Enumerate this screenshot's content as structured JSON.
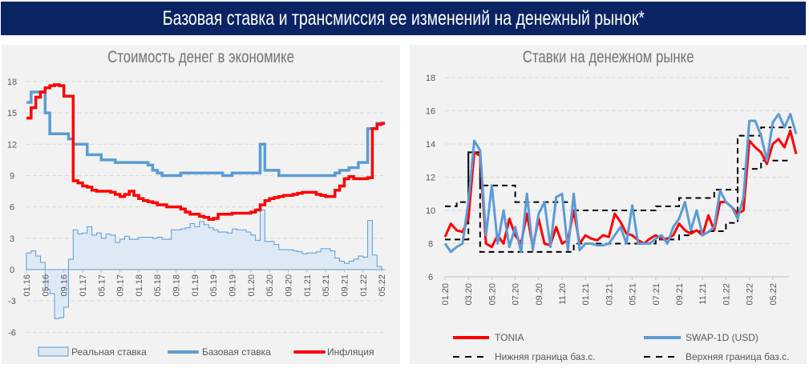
{
  "header": {
    "title": "Базовая ставка и трансмиссия ее изменений на денежный рынок*"
  },
  "chart_data": [
    {
      "type": "line",
      "title": "Стоимость денег в экономике",
      "x_start": "01.16",
      "x_step": "month",
      "x_tick_labels": [
        "01.16",
        "05.16",
        "09.16",
        "01.17",
        "05.17",
        "09.17",
        "01.18",
        "05.18",
        "09.18",
        "01.19",
        "05.19",
        "09.19",
        "01.20",
        "05.20",
        "09.20",
        "01.21",
        "05.21",
        "09.21",
        "01.22",
        "05.22"
      ],
      "y_ticks": [
        18,
        15,
        12,
        9,
        6,
        3,
        0,
        -3,
        -6
      ],
      "ylim": [
        -6,
        18
      ],
      "grid": "horizontal dashed",
      "legend_position": "bottom",
      "series": [
        {
          "name": "Реальная ставка",
          "kind": "area",
          "color": "#5b9bd5",
          "fill": "#dde9f5",
          "values": [
            1.6,
            1.8,
            1.3,
            0.7,
            -1.9,
            -2.3,
            -4.7,
            -4.6,
            -3.6,
            1.0,
            3.8,
            3.4,
            3.5,
            4.1,
            3.3,
            3.5,
            3.0,
            3.4,
            3.3,
            2.6,
            2.9,
            3.2,
            2.9,
            2.9,
            3.1,
            3.1,
            3.1,
            3.0,
            3.1,
            2.9,
            2.9,
            3.8,
            3.8,
            3.9,
            4.0,
            4.4,
            4.1,
            4.6,
            4.3,
            4.0,
            3.8,
            3.6,
            3.6,
            3.5,
            3.9,
            3.8,
            3.8,
            3.6,
            3.3,
            2.8,
            5.7,
            2.7,
            2.7,
            2.4,
            1.9,
            1.9,
            1.9,
            1.8,
            1.7,
            1.5,
            1.6,
            1.6,
            1.7,
            2.0,
            2.0,
            1.8,
            1.1,
            0.8,
            0.6,
            0.8,
            1.0,
            1.3,
            1.2,
            4.7,
            1.4,
            0.3,
            0.0
          ]
        },
        {
          "name": "Базовая ставка",
          "kind": "line",
          "color": "#5b9bd5",
          "values": [
            16,
            17,
            17,
            17,
            15,
            13,
            13,
            13,
            13,
            12.5,
            12,
            12,
            12,
            11,
            11,
            11,
            10.5,
            10.5,
            10.5,
            10.25,
            10.25,
            10.25,
            10.25,
            10.25,
            10.25,
            10.25,
            10,
            9.5,
            9.25,
            9,
            9,
            9,
            9,
            9.25,
            9.25,
            9.25,
            9.25,
            9.25,
            9.25,
            9.25,
            9.25,
            9.25,
            9,
            9,
            9.25,
            9.25,
            9.25,
            9.25,
            9.25,
            9.25,
            12,
            9.5,
            9.5,
            9.5,
            9,
            9,
            9,
            9,
            9,
            9,
            9,
            9,
            9,
            9,
            9,
            9,
            9.25,
            9.5,
            9.5,
            9.75,
            9.75,
            10.25,
            10.25,
            13.5,
            13.5,
            14,
            14
          ]
        },
        {
          "name": "Инфляция",
          "kind": "line",
          "color": "#ff0000",
          "values": [
            14.5,
            15.5,
            16.5,
            17.0,
            17.4,
            17.6,
            17.7,
            17.6,
            16.6,
            16.6,
            8.5,
            8.3,
            8.0,
            7.9,
            7.6,
            7.5,
            7.5,
            7.5,
            7.4,
            7.2,
            7.0,
            7.2,
            7.5,
            7.1,
            6.8,
            6.6,
            6.5,
            6.4,
            6.2,
            6.2,
            6.0,
            6.0,
            6.0,
            5.8,
            5.5,
            5.3,
            5.3,
            5.1,
            5.0,
            4.8,
            4.9,
            5.3,
            5.3,
            5.3,
            5.4,
            5.4,
            5.4,
            5.4,
            5.5,
            5.7,
            6.2,
            6.6,
            6.8,
            6.9,
            7.0,
            7.1,
            7.1,
            7.2,
            7.3,
            7.4,
            7.4,
            7.4,
            7.2,
            7.1,
            7.0,
            7.0,
            7.6,
            8.0,
            8.7,
            8.9,
            8.7,
            8.7,
            8.7,
            8.8,
            13.5,
            13.9,
            14.0
          ]
        }
      ]
    },
    {
      "type": "line",
      "title": "Ставки на денежном рынке",
      "x_start": "01.20",
      "x_step": "half-month",
      "x_tick_labels": [
        "01.20",
        "03.20",
        "05.20",
        "07.20",
        "09.20",
        "11.20",
        "01.21",
        "03.21",
        "05.21",
        "07.21",
        "09.21",
        "11.21",
        "01.22",
        "03.22",
        "05.22"
      ],
      "y_ticks": [
        18,
        16,
        14,
        12,
        10,
        8,
        6
      ],
      "ylim": [
        6,
        18
      ],
      "grid": "horizontal dashed",
      "legend_position": "bottom",
      "series": [
        {
          "name": "TONIA",
          "color": "#ff0000",
          "values": [
            8.4,
            9.2,
            8.8,
            8.7,
            9.5,
            13.5,
            13.3,
            8.0,
            7.8,
            8.5,
            8.0,
            9.5,
            8.5,
            8.0,
            9.8,
            7.8,
            9.5,
            8.0,
            7.9,
            9.0,
            8.0,
            8.2,
            10.0,
            8.0,
            8.5,
            8.3,
            8.2,
            8.5,
            8.4,
            9.8,
            9.3,
            8.6,
            8.5,
            8.2,
            8.0,
            8.3,
            8.5,
            8.3,
            8.3,
            8.5,
            9.2,
            8.8,
            8.6,
            8.8,
            8.5,
            9.7,
            8.8,
            10.5,
            10.5,
            10.2,
            9.8,
            10.0,
            14.2,
            13.8,
            13.5,
            12.8,
            14.0,
            14.3,
            13.8,
            14.8,
            13.4
          ]
        },
        {
          "name": "SWAP-1D (USD)",
          "color": "#5b9bd5",
          "values": [
            8.0,
            7.5,
            7.8,
            8.0,
            10.5,
            14.2,
            13.6,
            8.5,
            11.5,
            8.0,
            10.0,
            7.8,
            9.0,
            7.5,
            11.0,
            7.6,
            9.8,
            10.5,
            7.8,
            10.8,
            11.0,
            7.6,
            11.0,
            7.6,
            8.0,
            8.0,
            7.9,
            7.9,
            8.0,
            8.5,
            9.0,
            8.0,
            10.3,
            8.0,
            8.0,
            8.0,
            8.3,
            8.5,
            8.0,
            9.0,
            9.5,
            10.5,
            8.8,
            10.0,
            8.5,
            8.7,
            9.0,
            11.2,
            10.5,
            10.2,
            9.5,
            10.8,
            15.4,
            15.4,
            14.5,
            13.0,
            15.3,
            15.8,
            15.0,
            15.8,
            14.6
          ]
        },
        {
          "name": "Нижняя граница баз.с.",
          "color": "#000000",
          "dashed": true,
          "steps": [
            [
              "01.20",
              8.25
            ],
            [
              "03.20",
              13.5
            ],
            [
              "04.20",
              7.5
            ],
            [
              "12.20",
              8.0
            ],
            [
              "07.21",
              8.25
            ],
            [
              "09.21",
              8.5
            ],
            [
              "10.21",
              8.75
            ],
            [
              "01.22",
              9.25
            ],
            [
              "02.22",
              12.5
            ],
            [
              "04.22",
              13.0
            ]
          ]
        },
        {
          "name": "Верхняя граница баз.с.",
          "color": "#000000",
          "dashed": true,
          "steps": [
            [
              "01.20",
              10.25
            ],
            [
              "02.20",
              10.5
            ],
            [
              "03.20",
              13.5
            ],
            [
              "04.20",
              11.5
            ],
            [
              "07.20",
              10.5
            ],
            [
              "12.20",
              10.0
            ],
            [
              "07.21",
              10.25
            ],
            [
              "09.21",
              10.75
            ],
            [
              "12.21",
              11.25
            ],
            [
              "02.22",
              14.5
            ],
            [
              "04.22",
              15.0
            ]
          ]
        }
      ]
    }
  ]
}
